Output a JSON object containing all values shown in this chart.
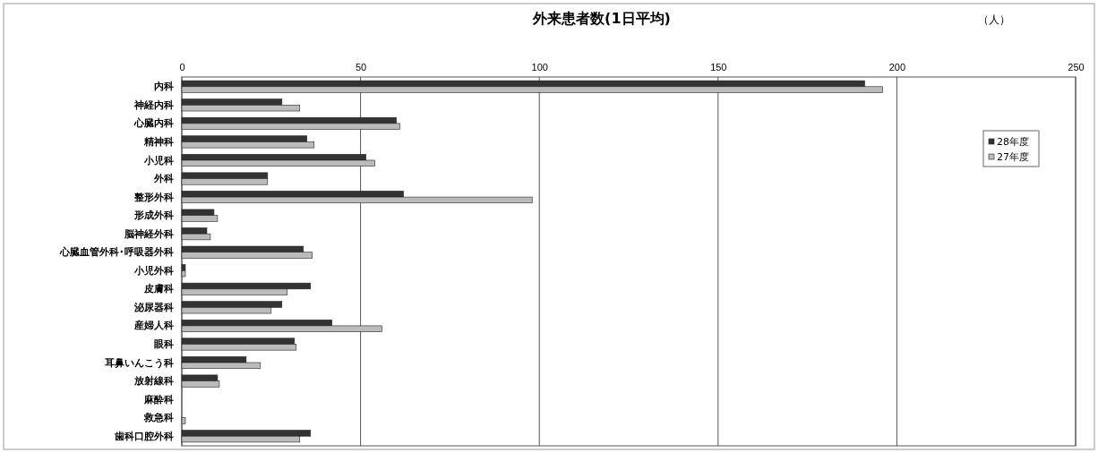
{
  "chart_data": {
    "type": "bar",
    "orientation": "horizontal",
    "title": "外来患者数(1日平均)",
    "annotations": [
      "（人）"
    ],
    "categories": [
      "内科",
      "神経内科",
      "心臓内科",
      "精神科",
      "小児科",
      "外科",
      "整形外科",
      "形成外科",
      "脳神経外科",
      "心臓血管外科･呼吸器外科",
      "小児外科",
      "皮膚科",
      "泌尿器科",
      "産婦人科",
      "眼科",
      "耳鼻いんこう科",
      "放射線科",
      "麻酔科",
      "救急科",
      "歯科口腔外科"
    ],
    "series": [
      {
        "name": "28年度",
        "color": "#333333",
        "values": [
          191,
          28,
          60,
          35,
          51.5,
          24,
          62,
          9,
          7,
          34,
          1,
          36,
          28,
          42,
          31.5,
          18,
          10,
          0,
          0,
          36
        ]
      },
      {
        "name": "27年度",
        "color": "#bbbbbb",
        "values": [
          196,
          33,
          61,
          37,
          54,
          24,
          98,
          10,
          8,
          36.5,
          1,
          29.5,
          25,
          56,
          32,
          22,
          10.5,
          0,
          1,
          33
        ]
      }
    ],
    "xlim": [
      0,
      250
    ],
    "xticks": [
      0,
      50,
      100,
      150,
      200,
      250
    ],
    "grid": "x",
    "legend": "top right"
  }
}
